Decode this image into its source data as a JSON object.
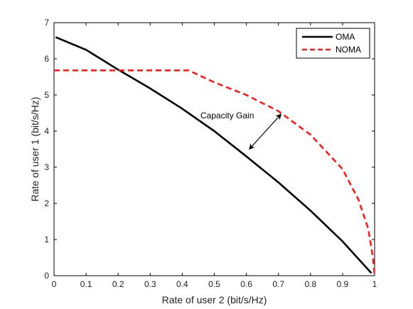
{
  "chart_data": {
    "type": "line",
    "title": "",
    "xlabel": "Rate of user 2 (bit/s/Hz)",
    "ylabel": "Rate of user 1 (bit/s/Hz)",
    "xlim": [
      0,
      1
    ],
    "ylim": [
      0,
      7
    ],
    "xticks": [
      "0",
      "0.1",
      "0.2",
      "0.3",
      "0.4",
      "0.5",
      "0.6",
      "0.7",
      "0.8",
      "0.9",
      "1"
    ],
    "yticks": [
      "0",
      "1",
      "2",
      "3",
      "4",
      "5",
      "6",
      "7"
    ],
    "grid": false,
    "legend_position": "top-right",
    "series": [
      {
        "name": "OMA",
        "color": "#000000",
        "style": "solid",
        "x": [
          0.005,
          0.1,
          0.2,
          0.3,
          0.4,
          0.5,
          0.6,
          0.7,
          0.8,
          0.9,
          0.99
        ],
        "y": [
          6.6,
          6.25,
          5.7,
          5.18,
          4.62,
          4.0,
          3.3,
          2.58,
          1.8,
          0.95,
          0.07
        ]
      },
      {
        "name": "NOMA",
        "color": "#ff1a1a",
        "style": "dashed",
        "x": [
          0.0,
          0.42,
          0.5,
          0.6,
          0.7,
          0.8,
          0.9,
          0.95,
          0.98,
          0.995,
          1.0
        ],
        "y": [
          5.68,
          5.68,
          5.35,
          5.0,
          4.55,
          3.9,
          2.95,
          2.1,
          1.3,
          0.5,
          0.0
        ]
      }
    ],
    "annotation": {
      "text": "Capacity Gain",
      "arrow_from": [
        0.6,
        3.4
      ],
      "arrow_to": [
        0.715,
        4.55
      ]
    }
  }
}
